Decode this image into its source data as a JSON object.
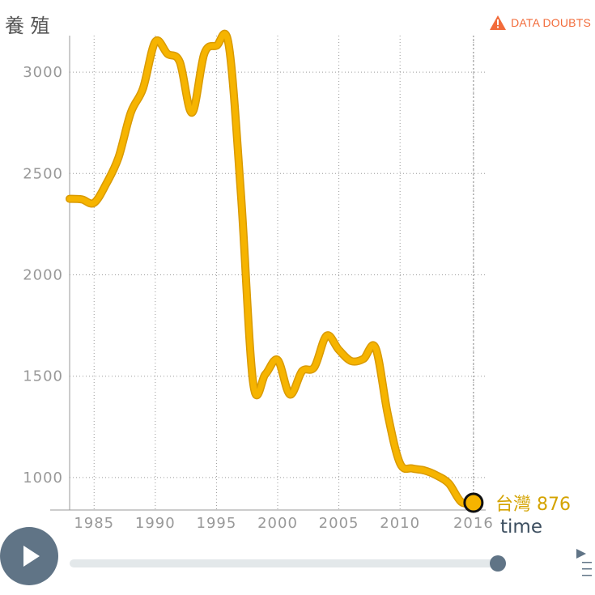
{
  "y_axis_title": "養 殖",
  "data_doubts_label": "DATA DOUBTS",
  "end_label": {
    "name": "台灣",
    "value": "876"
  },
  "time_label": "time",
  "colors": {
    "line": "#f6b400",
    "axis": "#999999",
    "grid": "#9a9a9a",
    "play": "#607486",
    "warning": "#f26b3a"
  },
  "icons": {
    "warning": "warning-triangle-icon",
    "play": "play-icon",
    "menu": "menu-icon"
  },
  "chart_data": {
    "type": "line",
    "title": "",
    "xlabel": "time",
    "ylabel": "養 殖",
    "xlim": [
      1983,
      2017
    ],
    "ylim": [
      840,
      3180
    ],
    "x_ticks": [
      1985,
      1990,
      1995,
      2000,
      2005,
      2010,
      2016
    ],
    "y_ticks": [
      1000,
      1500,
      2000,
      2500,
      3000
    ],
    "grid": true,
    "series": [
      {
        "name": "台灣",
        "x": [
          1983,
          1984,
          1985,
          1986,
          1987,
          1988,
          1989,
          1990,
          1991,
          1992,
          1993,
          1994,
          1995,
          1996,
          1997,
          1998,
          1999,
          2000,
          2001,
          2002,
          2003,
          2004,
          2005,
          2006,
          2007,
          2008,
          2009,
          2010,
          2011,
          2012,
          2013,
          2014,
          2015,
          2016
        ],
        "y": [
          2375,
          2372,
          2355,
          2450,
          2580,
          2800,
          2920,
          3150,
          3090,
          3050,
          2800,
          3090,
          3130,
          3135,
          2400,
          1465,
          1510,
          1580,
          1410,
          1525,
          1545,
          1700,
          1630,
          1575,
          1585,
          1640,
          1310,
          1070,
          1045,
          1035,
          1010,
          970,
          880,
          876
        ]
      }
    ]
  }
}
